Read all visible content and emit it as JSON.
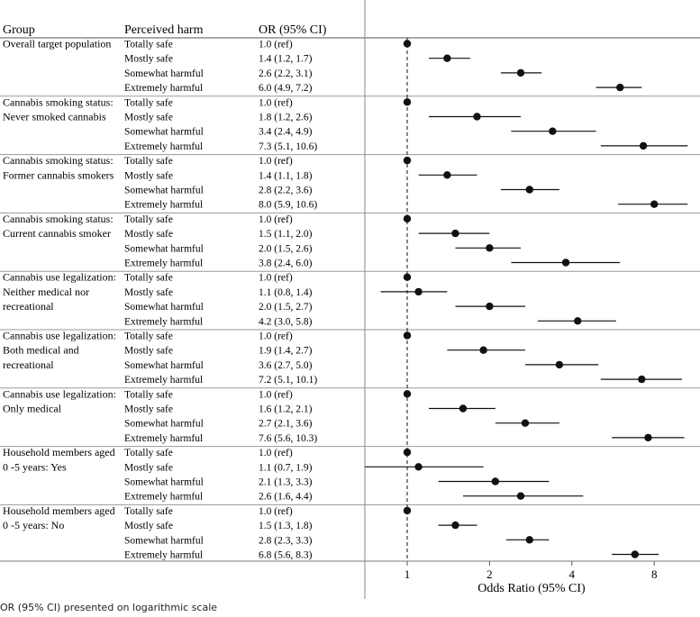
{
  "headers": {
    "group": "Group",
    "harm": "Perceived harm",
    "or": "OR (95% CI)"
  },
  "note": "OR (95% CI) presented on logarithmic scale",
  "chart_data": {
    "type": "forest",
    "scale": "log2",
    "xlabel": "Odds Ratio (95% CI)",
    "xticks": [
      1,
      2,
      4,
      8
    ],
    "xlim": [
      0.58,
      13.5
    ],
    "reference_line": 1,
    "groups": [
      {
        "label": [
          "Overall target population"
        ],
        "rows": [
          {
            "harm": "Totally safe",
            "text": "1.0 (ref)",
            "or": 1.0,
            "lo": 1.0,
            "hi": 1.0
          },
          {
            "harm": "Mostly safe",
            "text": "1.4 (1.2, 1.7)",
            "or": 1.4,
            "lo": 1.2,
            "hi": 1.7
          },
          {
            "harm": "Somewhat harmful",
            "text": "2.6 (2.2, 3.1)",
            "or": 2.6,
            "lo": 2.2,
            "hi": 3.1
          },
          {
            "harm": "Extremely harmful",
            "text": "6.0 (4.9, 7.2)",
            "or": 6.0,
            "lo": 4.9,
            "hi": 7.2
          }
        ]
      },
      {
        "label": [
          "Cannabis smoking status:",
          "Never smoked cannabis"
        ],
        "rows": [
          {
            "harm": "Totally safe",
            "text": "1.0 (ref)",
            "or": 1.0,
            "lo": 1.0,
            "hi": 1.0
          },
          {
            "harm": "Mostly safe",
            "text": "1.8 (1.2, 2.6)",
            "or": 1.8,
            "lo": 1.2,
            "hi": 2.6
          },
          {
            "harm": "Somewhat harmful",
            "text": "3.4 (2.4, 4.9)",
            "or": 3.4,
            "lo": 2.4,
            "hi": 4.9
          },
          {
            "harm": "Extremely harmful",
            "text": "7.3 (5.1, 10.6)",
            "or": 7.3,
            "lo": 5.1,
            "hi": 10.6
          }
        ]
      },
      {
        "label": [
          "Cannabis smoking status:",
          "Former cannabis smokers"
        ],
        "rows": [
          {
            "harm": "Totally safe",
            "text": "1.0 (ref)",
            "or": 1.0,
            "lo": 1.0,
            "hi": 1.0
          },
          {
            "harm": "Mostly safe",
            "text": "1.4 (1.1, 1.8)",
            "or": 1.4,
            "lo": 1.1,
            "hi": 1.8
          },
          {
            "harm": "Somewhat harmful",
            "text": "2.8 (2.2, 3.6)",
            "or": 2.8,
            "lo": 2.2,
            "hi": 3.6
          },
          {
            "harm": "Extremely harmful",
            "text": "8.0 (5.9, 10.6)",
            "or": 8.0,
            "lo": 5.9,
            "hi": 10.6
          }
        ]
      },
      {
        "label": [
          "Cannabis smoking status:",
          "Current cannabis smoker"
        ],
        "rows": [
          {
            "harm": "Totally safe",
            "text": "1.0 (ref)",
            "or": 1.0,
            "lo": 1.0,
            "hi": 1.0
          },
          {
            "harm": "Mostly safe",
            "text": "1.5 (1.1, 2.0)",
            "or": 1.5,
            "lo": 1.1,
            "hi": 2.0
          },
          {
            "harm": "Somewhat harmful",
            "text": "2.0 (1.5, 2.6)",
            "or": 2.0,
            "lo": 1.5,
            "hi": 2.6
          },
          {
            "harm": "Extremely harmful",
            "text": "3.8 (2.4, 6.0)",
            "or": 3.8,
            "lo": 2.4,
            "hi": 6.0
          }
        ]
      },
      {
        "label": [
          "Cannabis use legalization:",
          "Neither medical nor",
          "recreational"
        ],
        "rows": [
          {
            "harm": "Totally safe",
            "text": "1.0 (ref)",
            "or": 1.0,
            "lo": 1.0,
            "hi": 1.0
          },
          {
            "harm": "Mostly safe",
            "text": "1.1 (0.8, 1.4)",
            "or": 1.1,
            "lo": 0.8,
            "hi": 1.4
          },
          {
            "harm": "Somewhat harmful",
            "text": "2.0 (1.5, 2.7)",
            "or": 2.0,
            "lo": 1.5,
            "hi": 2.7
          },
          {
            "harm": "Extremely harmful",
            "text": "4.2 (3.0, 5.8)",
            "or": 4.2,
            "lo": 3.0,
            "hi": 5.8
          }
        ]
      },
      {
        "label": [
          "Cannabis use legalization:",
          "Both medical and",
          "recreational"
        ],
        "rows": [
          {
            "harm": "Totally safe",
            "text": "1.0 (ref)",
            "or": 1.0,
            "lo": 1.0,
            "hi": 1.0
          },
          {
            "harm": "Mostly safe",
            "text": "1.9 (1.4, 2.7)",
            "or": 1.9,
            "lo": 1.4,
            "hi": 2.7
          },
          {
            "harm": "Somewhat harmful",
            "text": "3.6 (2.7, 5.0)",
            "or": 3.6,
            "lo": 2.7,
            "hi": 5.0
          },
          {
            "harm": "Extremely harmful",
            "text": "7.2 (5.1, 10.1)",
            "or": 7.2,
            "lo": 5.1,
            "hi": 10.1
          }
        ]
      },
      {
        "label": [
          "Cannabis use legalization:",
          "Only medical"
        ],
        "rows": [
          {
            "harm": "Totally safe",
            "text": "1.0 (ref)",
            "or": 1.0,
            "lo": 1.0,
            "hi": 1.0
          },
          {
            "harm": "Mostly safe",
            "text": "1.6 (1.2, 2.1)",
            "or": 1.6,
            "lo": 1.2,
            "hi": 2.1
          },
          {
            "harm": "Somewhat harmful",
            "text": "2.7 (2.1, 3.6)",
            "or": 2.7,
            "lo": 2.1,
            "hi": 3.6
          },
          {
            "harm": "Extremely harmful",
            "text": "7.6 (5.6, 10.3)",
            "or": 7.6,
            "lo": 5.6,
            "hi": 10.3
          }
        ]
      },
      {
        "label": [
          "Household members aged",
          "0 -5 years: Yes"
        ],
        "rows": [
          {
            "harm": "Totally safe",
            "text": "1.0 (ref)",
            "or": 1.0,
            "lo": 1.0,
            "hi": 1.0
          },
          {
            "harm": "Mostly safe",
            "text": "1.1 (0.7, 1.9)",
            "or": 1.1,
            "lo": 0.7,
            "hi": 1.9
          },
          {
            "harm": "Somewhat harmful",
            "text": "2.1 (1.3, 3.3)",
            "or": 2.1,
            "lo": 1.3,
            "hi": 3.3
          },
          {
            "harm": "Extremely harmful",
            "text": "2.6 (1.6, 4.4)",
            "or": 2.6,
            "lo": 1.6,
            "hi": 4.4
          }
        ]
      },
      {
        "label": [
          "Household members aged",
          "0 -5 years: No"
        ],
        "rows": [
          {
            "harm": "Totally safe",
            "text": "1.0 (ref)",
            "or": 1.0,
            "lo": 1.0,
            "hi": 1.0
          },
          {
            "harm": "Mostly safe",
            "text": "1.5 (1.3, 1.8)",
            "or": 1.5,
            "lo": 1.3,
            "hi": 1.8
          },
          {
            "harm": "Somewhat harmful",
            "text": "2.8 (2.3, 3.3)",
            "or": 2.8,
            "lo": 2.3,
            "hi": 3.3
          },
          {
            "harm": "Extremely harmful",
            "text": "6.8 (5.6, 8.3)",
            "or": 6.8,
            "lo": 5.6,
            "hi": 8.3
          }
        ]
      }
    ]
  }
}
